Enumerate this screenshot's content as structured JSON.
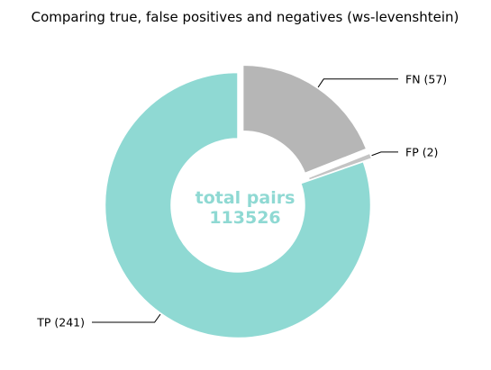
{
  "chart_data": {
    "type": "pie",
    "title": "Comparing true, false positives and negatives (ws-levenshtein)",
    "donut": true,
    "start_angle_deg": 90,
    "direction": "clockwise",
    "slices": [
      {
        "name": "FN",
        "value": 57,
        "label": "FN (57)",
        "color": "#b6b6b6",
        "exploded": true
      },
      {
        "name": "FP",
        "value": 2,
        "label": "FP (2)",
        "color": "#c4c4c4",
        "exploded": true
      },
      {
        "name": "TP",
        "value": 241,
        "label": "TP (241)",
        "color": "#8fd9d3",
        "exploded": false
      }
    ],
    "center_text": {
      "line1": "total pairs",
      "line2": "113526",
      "color": "#8fd9d3"
    }
  }
}
